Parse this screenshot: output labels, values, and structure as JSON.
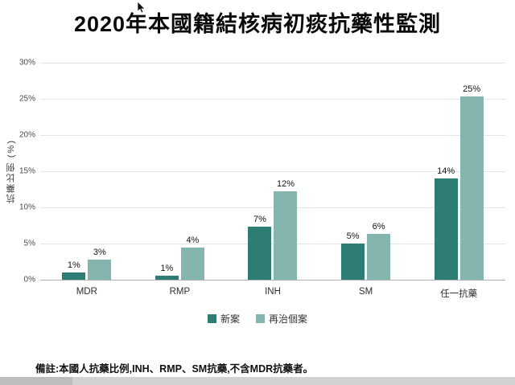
{
  "title": "2020年本國籍結核病初痰抗藥性監測",
  "note": "備註:本國人抗藥比例,INH、RMP、SM抗藥,不含MDR抗藥者。",
  "colors": {
    "series_new": "#2e7d74",
    "series_retreat": "#84b5ae"
  },
  "chart_data": {
    "type": "bar",
    "title": "2020年本國籍結核病初痰抗藥性監測",
    "categories": [
      "MDR",
      "RMP",
      "INH",
      "SM",
      "任一抗藥"
    ],
    "series": [
      {
        "name": "新案",
        "color": "#2e7d74",
        "values": [
          1,
          0.6,
          7.3,
          5,
          14
        ],
        "labels": [
          "1%",
          "1%",
          "7%",
          "5%",
          "14%"
        ]
      },
      {
        "name": "再治個案",
        "color": "#84b5ae",
        "values": [
          2.8,
          4.4,
          12.2,
          6.3,
          25.3
        ],
        "labels": [
          "3%",
          "4%",
          "12%",
          "6%",
          "25%"
        ]
      }
    ],
    "xlabel": "",
    "ylabel": "抗藥比例 (%)",
    "ylim": [
      0,
      30
    ],
    "yticks": [
      "0%",
      "5%",
      "10%",
      "15%",
      "20%",
      "25%",
      "30%"
    ],
    "grid": true,
    "legend_position": "bottom"
  }
}
